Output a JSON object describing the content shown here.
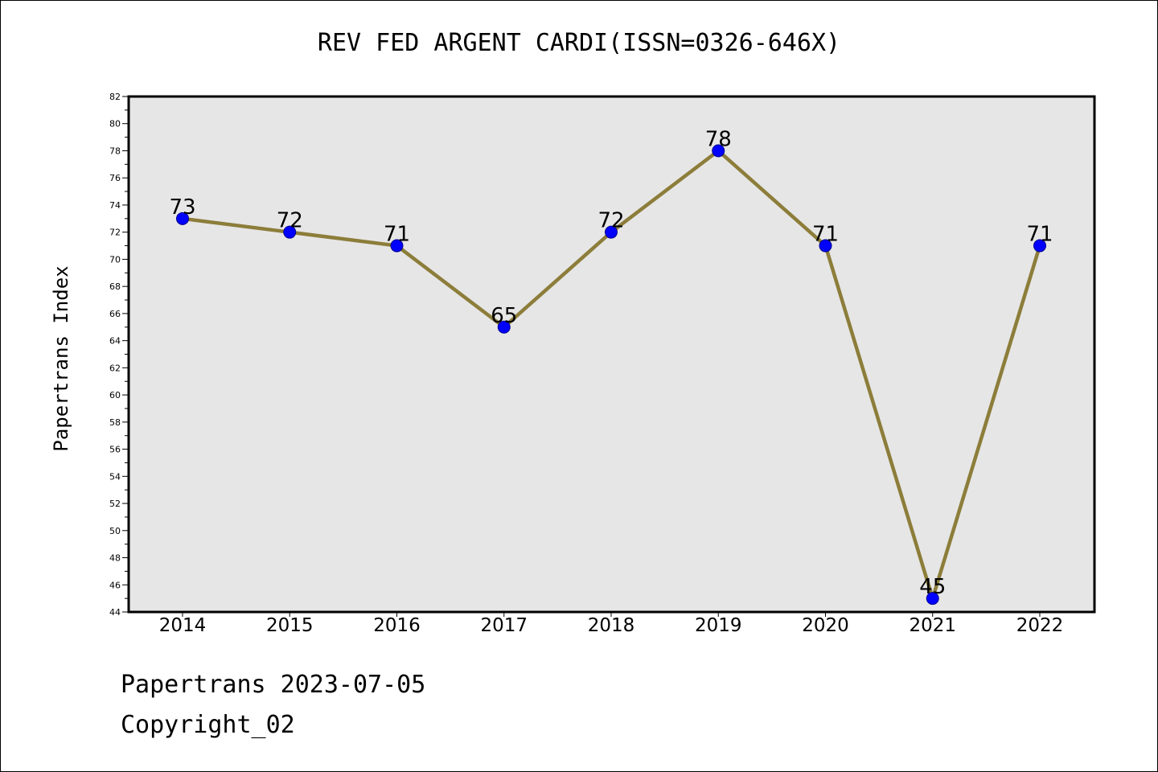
{
  "chart_data": {
    "type": "line",
    "title": "REV FED ARGENT CARDI(ISSN=0326-646X)",
    "xlabel": "",
    "ylabel": "Papertrans Index",
    "categories": [
      "2014",
      "2015",
      "2016",
      "2017",
      "2018",
      "2019",
      "2020",
      "2021",
      "2022"
    ],
    "series": [
      {
        "values": [
          73,
          72,
          71,
          65,
          72,
          78,
          71,
          45,
          71
        ]
      }
    ],
    "data_labels": [
      "73",
      "72",
      "71",
      "65",
      "72",
      "78",
      "71",
      "45",
      "71"
    ],
    "ylim": [
      44,
      82
    ],
    "yticks": [
      "44",
      "46",
      "48",
      "50",
      "52",
      "54",
      "56",
      "58",
      "60",
      "62",
      "64",
      "66",
      "68",
      "70",
      "72",
      "74",
      "76",
      "78",
      "80",
      "82"
    ],
    "grid": false,
    "legend": "none",
    "colors": {
      "line": "#8c7d3a",
      "marker": "#0000ff",
      "marker_edge": "#00008b",
      "plot_background": "#e6e6e6"
    }
  },
  "footer": {
    "line1": "Papertrans 2023-07-05",
    "line2": "Copyright_02"
  }
}
